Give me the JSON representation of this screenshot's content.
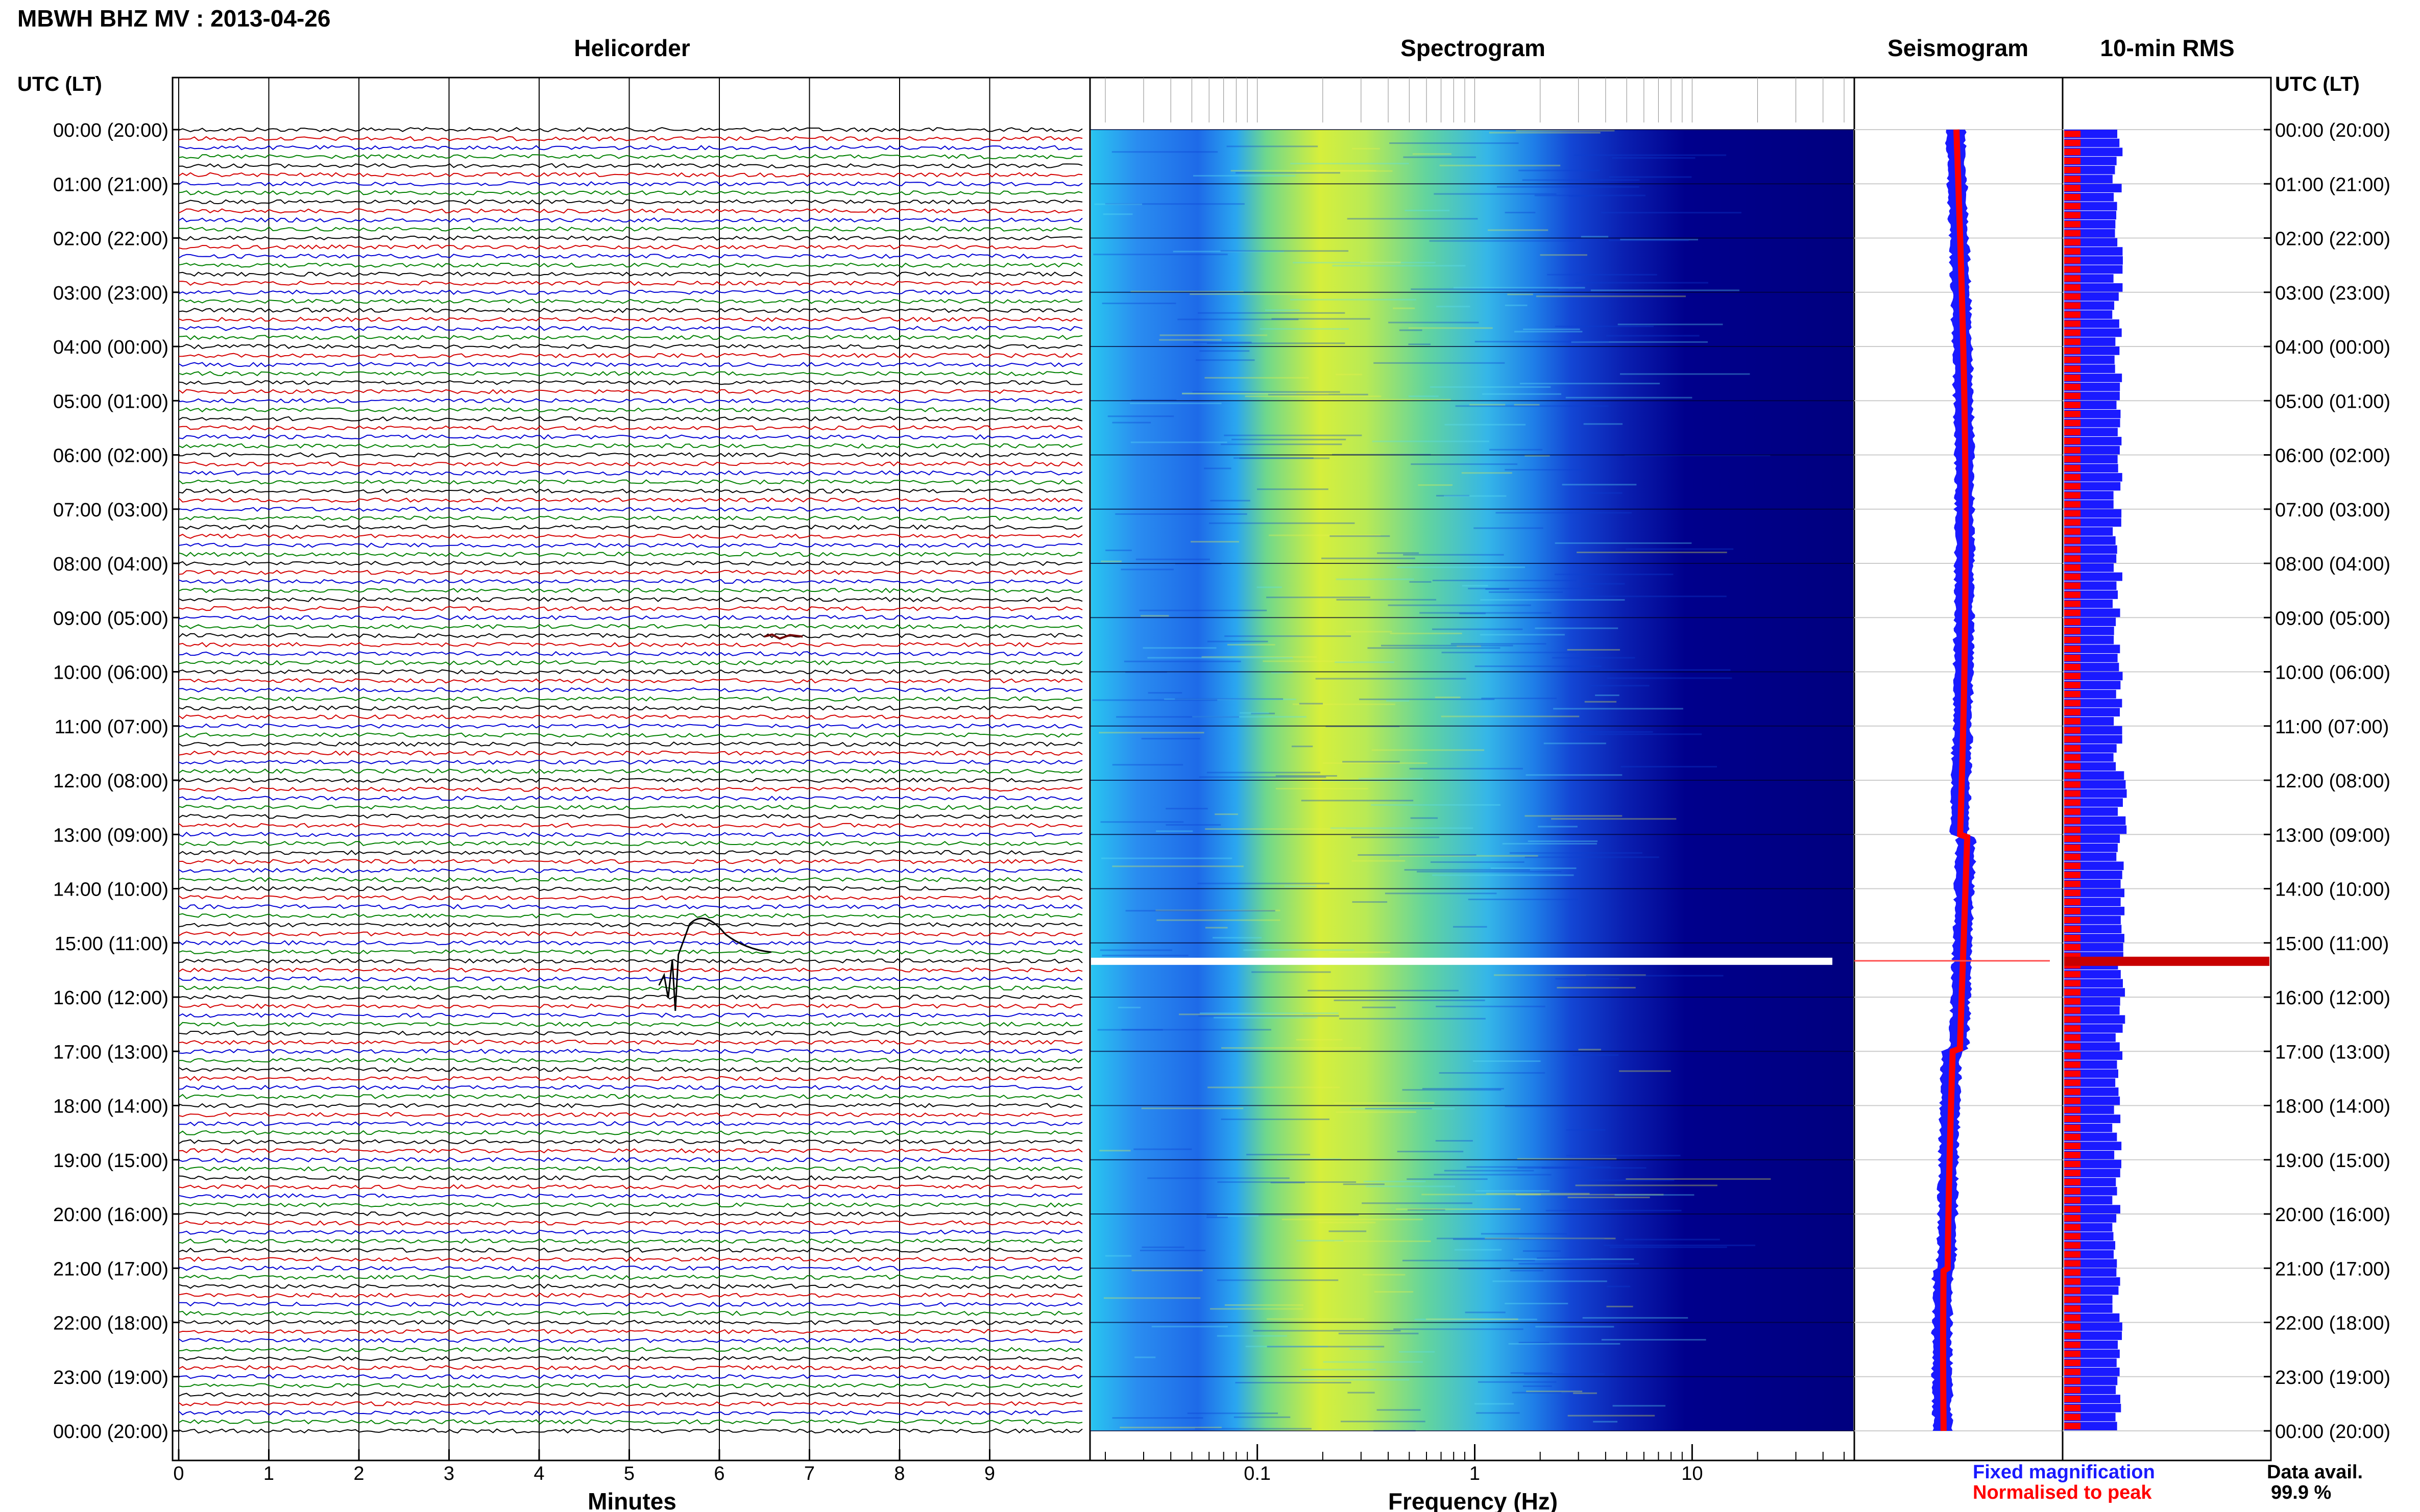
{
  "figure": {
    "title": "MBWH BHZ MV : 2013-04-26",
    "time_axis_label": "UTC (LT)"
  },
  "panels": {
    "helicorder": {
      "title": "Helicorder",
      "xlabel": "Minutes",
      "ticks": [
        "0",
        "1",
        "2",
        "3",
        "4",
        "5",
        "6",
        "7",
        "8",
        "9"
      ]
    },
    "spectrogram": {
      "title": "Spectrogram",
      "xlabel": "Frequency (Hz)",
      "ticks": [
        "0.1",
        "1",
        "10"
      ]
    },
    "seismogram": {
      "title": "Seismogram"
    },
    "rms": {
      "title": "10-min RMS"
    }
  },
  "time_labels": [
    "00:00 (20:00)",
    "01:00 (21:00)",
    "02:00 (22:00)",
    "03:00 (23:00)",
    "04:00 (00:00)",
    "05:00 (01:00)",
    "06:00 (02:00)",
    "07:00 (03:00)",
    "08:00 (04:00)",
    "09:00 (05:00)",
    "10:00 (06:00)",
    "11:00 (07:00)",
    "12:00 (08:00)",
    "13:00 (09:00)",
    "14:00 (10:00)",
    "15:00 (11:00)",
    "16:00 (12:00)",
    "17:00 (13:00)",
    "18:00 (14:00)",
    "19:00 (15:00)",
    "20:00 (16:00)",
    "21:00 (17:00)",
    "22:00 (18:00)",
    "23:00 (19:00)",
    "00:00 (20:00)"
  ],
  "legend": {
    "fixed_label": "Fixed magnification",
    "normalised_label": "Normalised to peak",
    "fixed_color": "#1a1aff",
    "normalised_color": "#ff0000"
  },
  "data_availability": {
    "label": "Data avail.",
    "value": "99.9 %"
  },
  "colors": {
    "helicorder_traces": [
      "#000000",
      "#d40000",
      "#0000d4",
      "#008000"
    ],
    "spectrogram_background": "#00007f"
  },
  "chart_data": [
    {
      "type": "line",
      "title": "Helicorder",
      "xlabel": "Minutes",
      "ylabel": "UTC (LT)",
      "xlim": [
        0,
        10
      ],
      "lines_per_hour": 6,
      "hours": 24,
      "events": [
        {
          "utc": "15:30",
          "minute": 5.5,
          "description": "large transient"
        },
        {
          "utc": "09:20",
          "minute": 6.5,
          "description": "small transient"
        }
      ]
    },
    {
      "type": "heatmap",
      "title": "Spectrogram",
      "xlabel": "Frequency (Hz)",
      "x_scale": "log",
      "xlim": [
        0.02,
        50
      ],
      "x_ticks": [
        0.1,
        1,
        10
      ],
      "peak_energy_hz": 0.2,
      "data_gap_utc": "15:25"
    },
    {
      "type": "line",
      "title": "Seismogram",
      "series": [
        {
          "name": "Fixed magnification",
          "color": "#1a1aff"
        },
        {
          "name": "Normalised to peak",
          "color": "#ff0000"
        }
      ]
    },
    {
      "type": "bar",
      "title": "10-min RMS",
      "series": [
        {
          "name": "Fixed magnification",
          "color": "#1a1aff",
          "typical_relative": 0.26
        },
        {
          "name": "Normalised to peak",
          "color": "#ff0000",
          "typical_relative": 0.08
        }
      ],
      "spike_utc": "15:25"
    }
  ]
}
